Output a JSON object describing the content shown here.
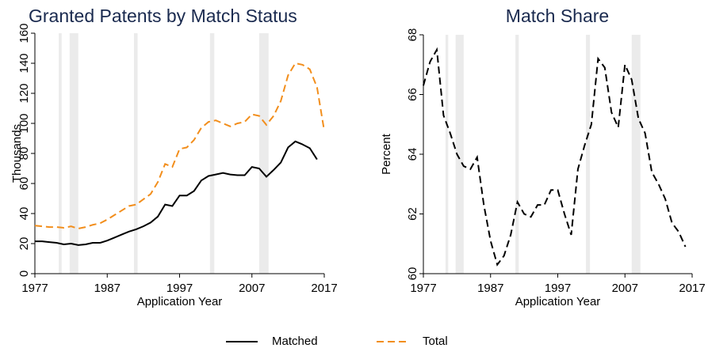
{
  "chart_data": [
    {
      "type": "line",
      "title": "Granted Patents by Match Status",
      "ylabel": "Thousands",
      "xlabel": "Application Year",
      "x": [
        1977,
        1978,
        1979,
        1980,
        1981,
        1982,
        1983,
        1984,
        1985,
        1986,
        1987,
        1988,
        1989,
        1990,
        1991,
        1992,
        1993,
        1994,
        1995,
        1996,
        1997,
        1998,
        1999,
        2000,
        2001,
        2002,
        2003,
        2004,
        2005,
        2006,
        2007,
        2008,
        2009,
        2010,
        2011,
        2012,
        2013,
        2014,
        2015,
        2016,
        2017
      ],
      "series": [
        {
          "name": "Matched",
          "color": "#000000",
          "dash": false,
          "values": [
            21.5,
            21.5,
            21,
            20.5,
            19.5,
            20,
            19,
            19.5,
            20.5,
            20.5,
            22,
            24,
            26,
            28,
            29.5,
            31.5,
            34,
            38,
            46,
            45,
            52,
            52,
            55,
            62,
            65,
            66,
            67,
            66,
            65.5,
            65.5,
            71,
            70,
            64.5,
            69,
            74,
            84,
            88,
            86,
            83.5,
            76,
            null
          ]
        },
        {
          "name": "Total",
          "color": "#f28e1c",
          "dash": true,
          "values": [
            32,
            31.5,
            31,
            31,
            30.5,
            31.5,
            30,
            31,
            32.5,
            33.5,
            36,
            39,
            42,
            45,
            46,
            49.5,
            53,
            61,
            73,
            71,
            83,
            84,
            89,
            97,
            101,
            102,
            100,
            98,
            100,
            101,
            106,
            105,
            99,
            105,
            115,
            132,
            140,
            139,
            136,
            124,
            95
          ]
        }
      ],
      "shaded": [
        [
          1980.3,
          1980.7
        ],
        [
          1981.8,
          1983
        ],
        [
          1990.7,
          1991.2
        ],
        [
          2001.2,
          2001.8
        ],
        [
          2008,
          2009.3
        ]
      ],
      "xlim": [
        1977,
        2017
      ],
      "xticks": [
        1977,
        1987,
        1997,
        2007,
        2017
      ],
      "ylim": [
        0,
        160
      ],
      "yticks": [
        0,
        20,
        40,
        60,
        80,
        100,
        120,
        140,
        160
      ]
    },
    {
      "type": "line",
      "title": "Match Share",
      "ylabel": "Percent",
      "xlabel": "Application Year",
      "x": [
        1977,
        1978,
        1979,
        1980,
        1981,
        1982,
        1983,
        1984,
        1985,
        1986,
        1987,
        1988,
        1989,
        1990,
        1991,
        1992,
        1993,
        1994,
        1995,
        1996,
        1997,
        1998,
        1999,
        2000,
        2001,
        2002,
        2003,
        2004,
        2005,
        2006,
        2007,
        2008,
        2009,
        2010,
        2011,
        2012,
        2013,
        2014,
        2015,
        2016
      ],
      "series": [
        {
          "color": "#000000",
          "dash": true,
          "values": [
            66.3,
            67.1,
            67.5,
            65.3,
            64.7,
            64.0,
            63.6,
            63.5,
            63.9,
            62.3,
            61.1,
            60.3,
            60.6,
            61.3,
            62.4,
            62.0,
            61.9,
            62.3,
            62.3,
            62.8,
            62.8,
            62.0,
            61.3,
            63.5,
            64.3,
            65.0,
            67.2,
            66.9,
            65.4,
            64.9,
            67.0,
            66.5,
            65.2,
            64.7,
            63.4,
            63.0,
            62.5,
            61.7,
            61.4,
            60.9
          ]
        }
      ],
      "shaded": [
        [
          1980.3,
          1980.7
        ],
        [
          1981.8,
          1983
        ],
        [
          1990.7,
          1991.2
        ],
        [
          2001.2,
          2001.8
        ],
        [
          2008,
          2009.3
        ]
      ],
      "xlim": [
        1977,
        2017
      ],
      "xticks": [
        1977,
        1987,
        1997,
        2007,
        2017
      ],
      "ylim": [
        60,
        68
      ],
      "yticks": [
        60,
        62,
        64,
        66,
        68
      ]
    }
  ]
}
